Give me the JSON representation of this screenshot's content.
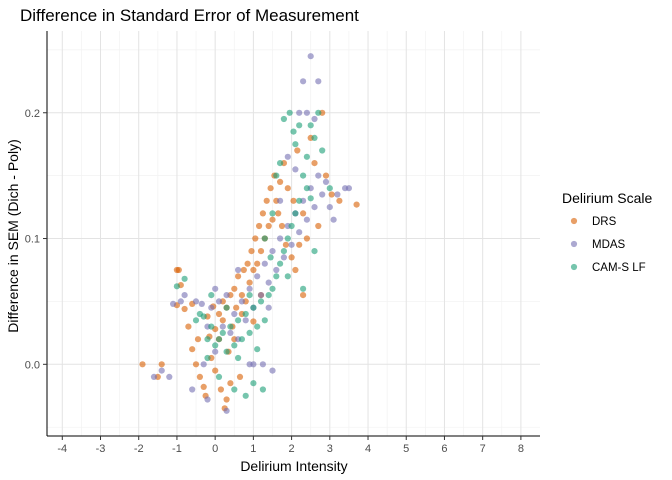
{
  "chart_data": {
    "type": "scatter",
    "title": "Difference in Standard Error of Measurement",
    "xlabel": "Delirium Intensity",
    "ylabel": "Difference in SEM (Dich - Poly)",
    "xlim": [
      -4.4,
      8.5
    ],
    "ylim": [
      -0.057,
      0.265
    ],
    "x_ticks": [
      -4,
      -3,
      -2,
      -1,
      0,
      1,
      2,
      3,
      4,
      5,
      6,
      7,
      8
    ],
    "x_tick_labels": [
      "-4",
      "-3",
      "-2",
      "-1",
      "0",
      "1",
      "2",
      "3",
      "4",
      "5",
      "6",
      "7",
      "8"
    ],
    "y_ticks": [
      0.0,
      0.1,
      0.2
    ],
    "y_tick_labels": [
      "0.0",
      "0.1",
      "0.2"
    ],
    "grid": true,
    "legend": {
      "title": "Delirium Scale",
      "position": "right"
    },
    "series": [
      {
        "name": "DRS",
        "color": "#D95F02",
        "points": [
          [
            -1.9,
            0.0
          ],
          [
            -1.5,
            -0.01
          ],
          [
            -1.4,
            0.0
          ],
          [
            -1.0,
            0.075
          ],
          [
            -0.95,
            0.075
          ],
          [
            -0.9,
            0.063
          ],
          [
            -0.8,
            0.044
          ],
          [
            -0.7,
            0.03
          ],
          [
            -0.6,
            0.048
          ],
          [
            -0.5,
            0.0
          ],
          [
            -0.45,
            0.02
          ],
          [
            -0.4,
            -0.01
          ],
          [
            -0.3,
            -0.018
          ],
          [
            -0.25,
            -0.025
          ],
          [
            -0.2,
            0.038
          ],
          [
            -0.1,
            0.005
          ],
          [
            -0.05,
            0.046
          ],
          [
            0.0,
            -0.005
          ],
          [
            0.1,
            0.04
          ],
          [
            0.1,
            0.02
          ],
          [
            0.15,
            -0.02
          ],
          [
            0.2,
            0.05
          ],
          [
            0.25,
            -0.035
          ],
          [
            0.3,
            0.045
          ],
          [
            0.35,
            0.01
          ],
          [
            0.4,
            0.055
          ],
          [
            0.45,
            0.03
          ],
          [
            0.5,
            0.06
          ],
          [
            0.55,
            0.045
          ],
          [
            0.6,
            0.07
          ],
          [
            0.65,
            -0.01
          ],
          [
            0.7,
            0.04
          ],
          [
            0.75,
            0.075
          ],
          [
            0.8,
            0.05
          ],
          [
            0.85,
            0.08
          ],
          [
            0.9,
            0.065
          ],
          [
            0.95,
            0.09
          ],
          [
            1.0,
            0.075
          ],
          [
            1.05,
            0.1
          ],
          [
            1.1,
            0.08
          ],
          [
            1.15,
            0.11
          ],
          [
            1.2,
            0.09
          ],
          [
            1.25,
            0.12
          ],
          [
            1.3,
            0.1
          ],
          [
            1.35,
            0.13
          ],
          [
            1.4,
            0.11
          ],
          [
            1.45,
            0.14
          ],
          [
            1.5,
            0.115
          ],
          [
            1.55,
            0.15
          ],
          [
            1.6,
            0.13
          ],
          [
            1.65,
            0.12
          ],
          [
            1.7,
            0.145
          ],
          [
            1.75,
            0.11
          ],
          [
            1.8,
            0.16
          ],
          [
            1.85,
            0.095
          ],
          [
            1.9,
            0.14
          ],
          [
            2.0,
            0.085
          ],
          [
            2.05,
            0.13
          ],
          [
            2.1,
            0.075
          ],
          [
            2.15,
            0.17
          ],
          [
            2.2,
            0.095
          ],
          [
            2.3,
            0.12
          ],
          [
            2.4,
            0.1
          ],
          [
            2.5,
            0.18
          ],
          [
            2.6,
            0.16
          ],
          [
            2.7,
            0.11
          ],
          [
            2.8,
            0.2
          ],
          [
            2.9,
            0.15
          ],
          [
            3.05,
            0.135
          ],
          [
            3.25,
            0.13
          ],
          [
            3.7,
            0.127
          ],
          [
            0.3,
            -0.028
          ],
          [
            0.5,
            0.02
          ],
          [
            0.0,
            0.028
          ],
          [
            -0.15,
            0.022
          ],
          [
            1.0,
            0.034
          ],
          [
            0.2,
            0.035
          ],
          [
            0.7,
            0.055
          ],
          [
            -0.6,
            0.012
          ],
          [
            -1.0,
            0.047
          ],
          [
            2.3,
            0.055
          ],
          [
            1.2,
            0.055
          ],
          [
            0.4,
            -0.015
          ]
        ]
      },
      {
        "name": "MDAS",
        "color": "#7570B3",
        "points": [
          [
            -1.6,
            -0.01
          ],
          [
            -1.4,
            -0.005
          ],
          [
            -1.1,
            0.048
          ],
          [
            -0.9,
            0.05
          ],
          [
            -0.8,
            0.055
          ],
          [
            -0.5,
            0.05
          ],
          [
            -0.35,
            0.048
          ],
          [
            -0.3,
            0.0
          ],
          [
            -0.2,
            0.03
          ],
          [
            -0.1,
            0.045
          ],
          [
            0.0,
            0.01
          ],
          [
            0.1,
            0.05
          ],
          [
            0.2,
            0.03
          ],
          [
            0.3,
            0.055
          ],
          [
            0.4,
            0.025
          ],
          [
            0.5,
            0.04
          ],
          [
            0.6,
            0.02
          ],
          [
            0.7,
            0.05
          ],
          [
            0.8,
            0.035
          ],
          [
            0.9,
            0.06
          ],
          [
            1.0,
            0.045
          ],
          [
            1.1,
            0.07
          ],
          [
            1.2,
            0.055
          ],
          [
            1.3,
            0.08
          ],
          [
            1.4,
            0.065
          ],
          [
            1.5,
            0.09
          ],
          [
            1.6,
            0.075
          ],
          [
            1.7,
            0.1
          ],
          [
            1.8,
            0.085
          ],
          [
            1.9,
            0.11
          ],
          [
            2.0,
            0.095
          ],
          [
            2.1,
            0.12
          ],
          [
            2.2,
            0.105
          ],
          [
            2.3,
            0.13
          ],
          [
            2.4,
            0.115
          ],
          [
            2.5,
            0.14
          ],
          [
            2.6,
            0.125
          ],
          [
            2.7,
            0.15
          ],
          [
            2.8,
            0.135
          ],
          [
            2.9,
            0.145
          ],
          [
            3.0,
            0.125
          ],
          [
            3.2,
            0.135
          ],
          [
            3.4,
            0.14
          ],
          [
            3.5,
            0.14
          ],
          [
            2.5,
            0.245
          ],
          [
            2.3,
            0.225
          ],
          [
            2.7,
            0.225
          ],
          [
            2.4,
            0.2
          ],
          [
            2.6,
            0.195
          ],
          [
            1.9,
            0.165
          ],
          [
            2.2,
            0.2
          ],
          [
            0.3,
            -0.037
          ],
          [
            0.9,
            0.0
          ],
          [
            1.25,
            0.0
          ],
          [
            1.5,
            -0.005
          ],
          [
            -0.6,
            -0.02
          ],
          [
            -0.2,
            -0.028
          ],
          [
            0.0,
            0.06
          ],
          [
            1.4,
            0.045
          ],
          [
            0.6,
            0.075
          ],
          [
            1.7,
            0.13
          ],
          [
            2.1,
            0.155
          ],
          [
            3.1,
            0.115
          ],
          [
            -1.2,
            -0.01
          ],
          [
            1.0,
            0.0
          ]
        ]
      },
      {
        "name": "CAM-S LF",
        "color": "#1B9E77",
        "points": [
          [
            -1.0,
            0.062
          ],
          [
            -0.8,
            0.068
          ],
          [
            -0.5,
            0.035
          ],
          [
            -0.4,
            0.04
          ],
          [
            -0.3,
            0.038
          ],
          [
            -0.2,
            0.02
          ],
          [
            -0.1,
            0.03
          ],
          [
            0.0,
            0.015
          ],
          [
            0.1,
            0.02
          ],
          [
            0.2,
            0.025
          ],
          [
            0.3,
            0.01
          ],
          [
            0.4,
            0.03
          ],
          [
            0.5,
            0.015
          ],
          [
            0.6,
            0.035
          ],
          [
            0.7,
            0.02
          ],
          [
            0.8,
            0.04
          ],
          [
            0.9,
            0.025
          ],
          [
            1.0,
            0.045
          ],
          [
            1.1,
            0.03
          ],
          [
            1.2,
            0.05
          ],
          [
            1.3,
            0.035
          ],
          [
            1.4,
            0.055
          ],
          [
            1.5,
            0.06
          ],
          [
            1.6,
            0.07
          ],
          [
            1.7,
            0.08
          ],
          [
            1.8,
            0.09
          ],
          [
            1.9,
            0.1
          ],
          [
            2.0,
            0.11
          ],
          [
            2.1,
            0.12
          ],
          [
            2.2,
            0.13
          ],
          [
            2.3,
            0.15
          ],
          [
            2.4,
            0.165
          ],
          [
            2.5,
            0.19
          ],
          [
            2.6,
            0.18
          ],
          [
            2.7,
            0.2
          ],
          [
            2.2,
            0.19
          ],
          [
            2.1,
            0.175
          ],
          [
            2.4,
            0.14
          ],
          [
            2.5,
            0.132
          ],
          [
            2.8,
            0.17
          ],
          [
            1.8,
            0.195
          ],
          [
            1.95,
            0.2
          ],
          [
            2.05,
            0.185
          ],
          [
            1.6,
            0.15
          ],
          [
            1.7,
            0.16
          ],
          [
            1.5,
            0.12
          ],
          [
            1.3,
            0.1
          ],
          [
            0.5,
            -0.02
          ],
          [
            0.8,
            -0.025
          ],
          [
            1.0,
            -0.015
          ],
          [
            1.25,
            -0.02
          ],
          [
            0.1,
            -0.01
          ],
          [
            -0.2,
            0.005
          ],
          [
            0.6,
            0.005
          ],
          [
            1.1,
            0.012
          ],
          [
            1.9,
            0.07
          ],
          [
            2.3,
            0.06
          ],
          [
            2.6,
            0.09
          ],
          [
            3.0,
            0.14
          ],
          [
            1.45,
            0.085
          ],
          [
            0.9,
            0.055
          ],
          [
            -0.1,
            0.055
          ],
          [
            0.3,
            0.045
          ]
        ]
      }
    ]
  }
}
